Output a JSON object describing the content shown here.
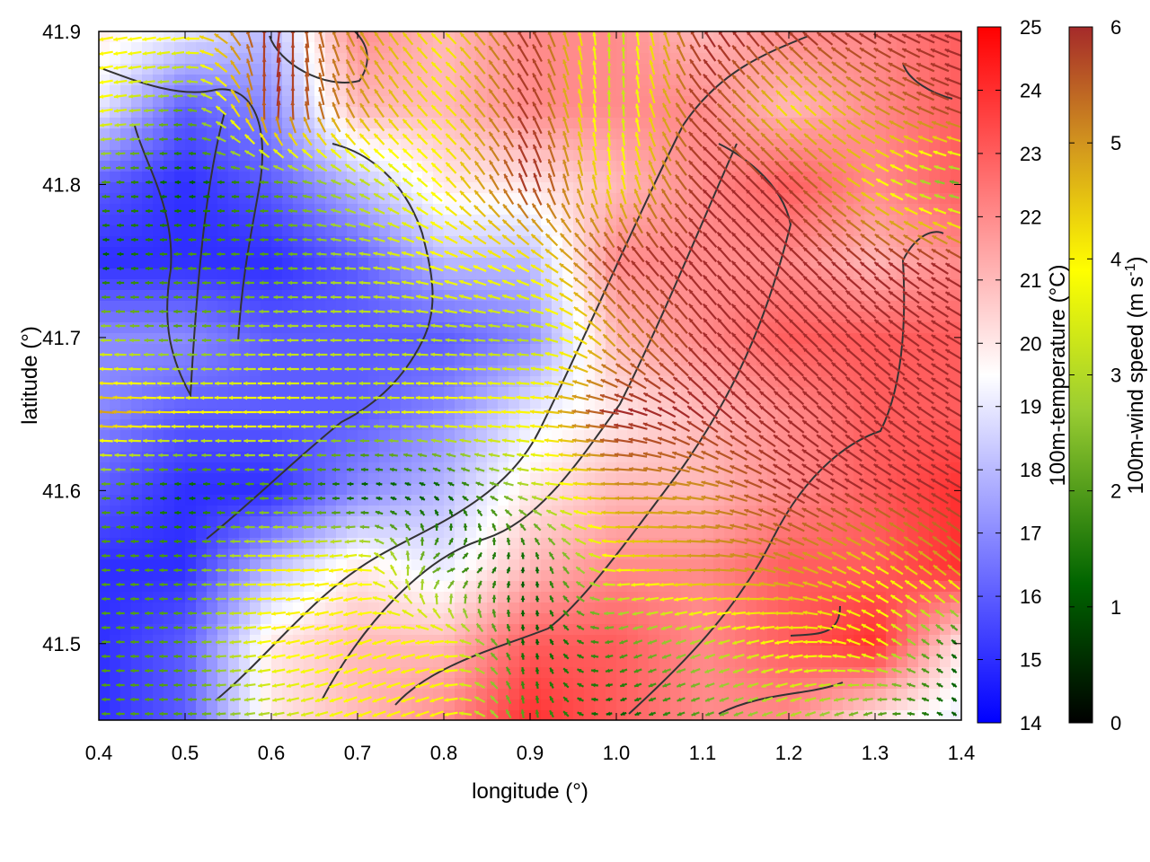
{
  "chart_data": {
    "type": "heatmap",
    "title": "",
    "xlabel": "longitude (°)",
    "ylabel": "latitude (°)",
    "xlim": [
      0.4,
      1.4
    ],
    "ylim": [
      41.45,
      41.9
    ],
    "x_ticks": [
      0.4,
      0.5,
      0.6,
      0.7,
      0.8,
      0.9,
      1.0,
      1.1,
      1.2,
      1.3,
      1.4
    ],
    "x_tick_labels": [
      "0.4",
      "0.5",
      "0.6",
      "0.7",
      "0.8",
      "0.9",
      "1.0",
      "1.1",
      "1.2",
      "1.3",
      "1.4"
    ],
    "y_ticks": [
      41.5,
      41.6,
      41.7,
      41.8,
      41.9
    ],
    "y_tick_labels": [
      "41.5",
      "41.6",
      "41.7",
      "41.8",
      "41.9"
    ],
    "overlays": [
      "100m wind vectors colored by speed",
      "terrain contour lines"
    ],
    "temperature_colorbar": {
      "label": "100m-temperature (°C)",
      "range": [
        14,
        25
      ],
      "ticks": [
        14,
        15,
        16,
        17,
        18,
        19,
        20,
        21,
        22,
        23,
        24,
        25
      ],
      "tick_labels": [
        "14",
        "15",
        "16",
        "17",
        "18",
        "19",
        "20",
        "21",
        "22",
        "23",
        "24",
        "25"
      ],
      "colors": [
        "#0000ff",
        "#ffffff",
        "#ff0000"
      ]
    },
    "windspeed_colorbar": {
      "label_parts": [
        "100m-wind speed (m s",
        "-1",
        ")"
      ],
      "range": [
        0,
        6
      ],
      "ticks": [
        0,
        1,
        2,
        3,
        4,
        5,
        6
      ],
      "tick_labels": [
        "0",
        "1",
        "2",
        "3",
        "4",
        "5",
        "6"
      ],
      "colors": [
        "#000000",
        "#006400",
        "#9acd32",
        "#ffff00",
        "#d2961e",
        "#a52a2a"
      ]
    },
    "temperature_field": {
      "cols_lon": [
        0.4,
        0.5,
        0.6,
        0.7,
        0.8,
        0.9,
        1.0,
        1.1,
        1.2,
        1.3,
        1.4
      ],
      "rows_lat": [
        41.9,
        41.85,
        41.8,
        41.75,
        41.7,
        41.65,
        41.6,
        41.55,
        41.5,
        41.45
      ],
      "values": [
        [
          20,
          19,
          18,
          22,
          21,
          22,
          22,
          21,
          22,
          22,
          23
        ],
        [
          19,
          16,
          17,
          21,
          21,
          22,
          22,
          22,
          21,
          22,
          23
        ],
        [
          16,
          15,
          16,
          18,
          20,
          20,
          21,
          22,
          23,
          22,
          23
        ],
        [
          15,
          15,
          15,
          16,
          18,
          18,
          22,
          22,
          22,
          21,
          22
        ],
        [
          17,
          17,
          16,
          16,
          16,
          17,
          21,
          22,
          23,
          23,
          23
        ],
        [
          17,
          16,
          16,
          16,
          17,
          19,
          20,
          21,
          22,
          23,
          23
        ],
        [
          16,
          15,
          15,
          17,
          18,
          20,
          21,
          21,
          22,
          23,
          24
        ],
        [
          15,
          15,
          18,
          20,
          19,
          21,
          22,
          22,
          23,
          23,
          24
        ],
        [
          15,
          16,
          20,
          21,
          21,
          23,
          23,
          22,
          23,
          24,
          20
        ],
        [
          15,
          16,
          20,
          21,
          22,
          24,
          23,
          22,
          22,
          20,
          19
        ]
      ]
    },
    "wind_speed_field": {
      "cols_lon": [
        0.4,
        0.5,
        0.6,
        0.7,
        0.8,
        0.9,
        1.0,
        1.1,
        1.2,
        1.3,
        1.4
      ],
      "rows_lat": [
        41.9,
        41.85,
        41.8,
        41.75,
        41.7,
        41.65,
        41.6,
        41.55,
        41.5,
        41.45
      ],
      "values": [
        [
          4,
          4,
          6,
          5,
          4,
          6,
          3,
          6,
          6,
          6,
          6
        ],
        [
          4,
          2,
          6,
          5,
          4,
          6,
          3,
          6,
          4,
          5,
          6
        ],
        [
          2,
          1,
          2,
          3,
          4,
          6,
          4,
          6,
          6,
          4,
          2
        ],
        [
          1,
          2,
          2,
          3,
          4,
          4,
          6,
          6,
          6,
          6,
          6
        ],
        [
          3,
          2,
          3,
          3,
          3,
          3,
          5,
          6,
          6,
          6,
          6
        ],
        [
          5,
          4,
          4,
          3,
          4,
          4,
          6,
          6,
          6,
          6,
          6
        ],
        [
          2,
          1,
          2,
          1,
          1,
          3,
          5,
          5,
          6,
          6,
          6
        ],
        [
          2,
          2,
          4,
          4,
          2,
          1,
          4,
          5,
          5,
          4,
          5
        ],
        [
          2,
          2,
          4,
          4,
          4,
          1,
          2,
          3,
          4,
          4,
          1
        ],
        [
          2,
          2,
          3,
          4,
          4,
          2,
          1,
          2,
          3,
          2,
          1
        ]
      ]
    },
    "wind_direction_field_deg": {
      "cols_lon": [
        0.4,
        0.5,
        0.6,
        0.7,
        0.8,
        0.9,
        1.0,
        1.1,
        1.2,
        1.3,
        1.4
      ],
      "rows_lat": [
        41.9,
        41.85,
        41.8,
        41.75,
        41.7,
        41.65,
        41.6,
        41.55,
        41.5,
        41.45
      ],
      "values": [
        [
          190,
          190,
          80,
          120,
          135,
          120,
          90,
          120,
          135,
          150,
          160
        ],
        [
          190,
          180,
          80,
          120,
          135,
          120,
          90,
          135,
          135,
          150,
          160
        ],
        [
          180,
          180,
          180,
          150,
          135,
          110,
          100,
          135,
          135,
          150,
          170
        ],
        [
          180,
          180,
          180,
          175,
          160,
          150,
          130,
          130,
          135,
          140,
          150
        ],
        [
          180,
          180,
          180,
          180,
          175,
          175,
          130,
          130,
          135,
          140,
          150
        ],
        [
          175,
          180,
          180,
          180,
          180,
          175,
          170,
          140,
          140,
          140,
          150
        ],
        [
          180,
          180,
          180,
          180,
          150,
          170,
          180,
          170,
          150,
          150,
          150
        ],
        [
          180,
          180,
          180,
          190,
          10,
          90,
          180,
          180,
          160,
          150,
          140
        ],
        [
          180,
          180,
          190,
          200,
          190,
          90,
          200,
          200,
          190,
          150,
          140
        ],
        [
          180,
          180,
          190,
          200,
          200,
          90,
          200,
          200,
          200,
          200,
          140
        ]
      ]
    }
  }
}
